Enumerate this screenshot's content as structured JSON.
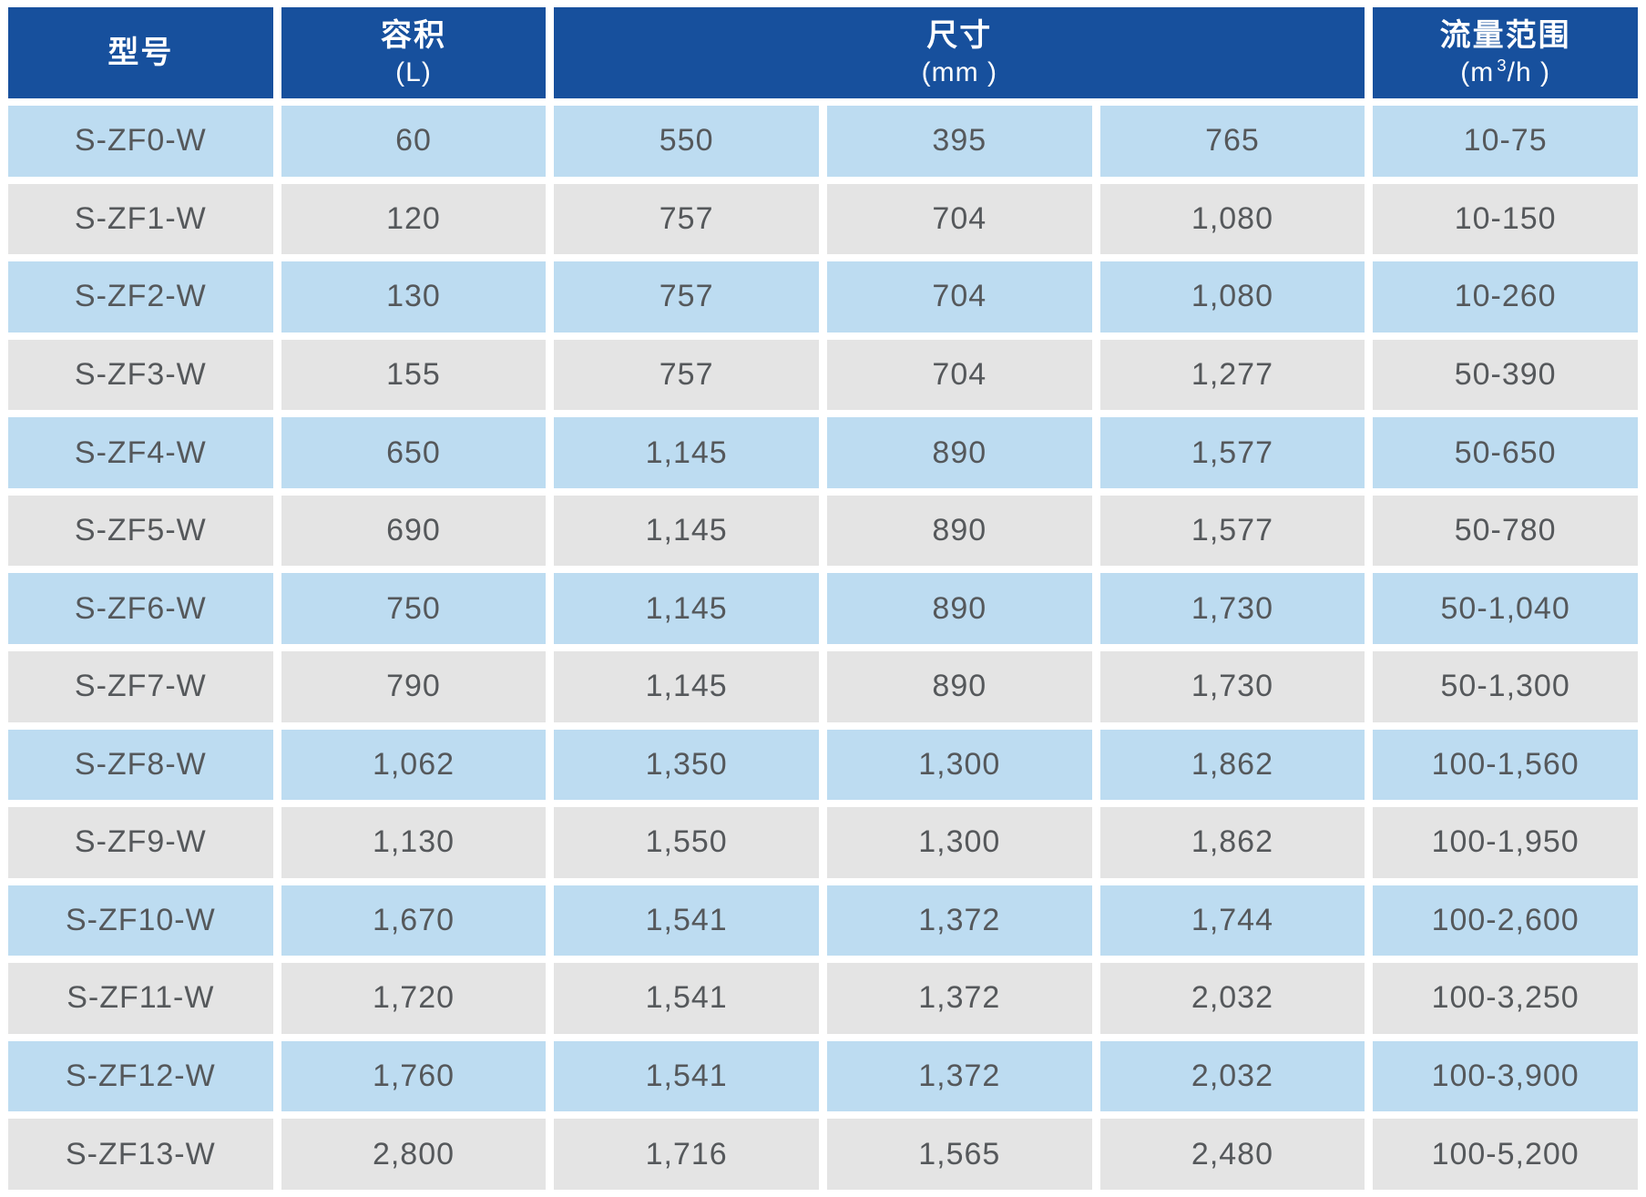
{
  "colors": {
    "header_bg": "#17509d",
    "header_text": "#ffffff",
    "row_blue": "#bddcf1",
    "row_gray": "#e4e4e4",
    "cell_text": "#55585b"
  },
  "table": {
    "header": {
      "model": {
        "title": "型号",
        "unit": ""
      },
      "volume": {
        "title": "容积",
        "unit": "(L)"
      },
      "size": {
        "title": "尺寸",
        "unit": "(mm )"
      },
      "flow": {
        "title": "流量范围",
        "unit_prefix": "(m",
        "unit_sup": "3",
        "unit_suffix": "/h )"
      }
    },
    "rows": [
      {
        "model": "S-ZF0-W",
        "volume": "60",
        "dim1": "550",
        "dim2": "395",
        "dim3": "765",
        "flow": "10-75"
      },
      {
        "model": "S-ZF1-W",
        "volume": "120",
        "dim1": "757",
        "dim2": "704",
        "dim3": "1,080",
        "flow": "10-150"
      },
      {
        "model": "S-ZF2-W",
        "volume": "130",
        "dim1": "757",
        "dim2": "704",
        "dim3": "1,080",
        "flow": "10-260"
      },
      {
        "model": "S-ZF3-W",
        "volume": "155",
        "dim1": "757",
        "dim2": "704",
        "dim3": "1,277",
        "flow": "50-390"
      },
      {
        "model": "S-ZF4-W",
        "volume": "650",
        "dim1": "1,145",
        "dim2": "890",
        "dim3": "1,577",
        "flow": "50-650"
      },
      {
        "model": "S-ZF5-W",
        "volume": "690",
        "dim1": "1,145",
        "dim2": "890",
        "dim3": "1,577",
        "flow": "50-780"
      },
      {
        "model": "S-ZF6-W",
        "volume": "750",
        "dim1": "1,145",
        "dim2": "890",
        "dim3": "1,730",
        "flow": "50-1,040"
      },
      {
        "model": "S-ZF7-W",
        "volume": "790",
        "dim1": "1,145",
        "dim2": "890",
        "dim3": "1,730",
        "flow": "50-1,300"
      },
      {
        "model": "S-ZF8-W",
        "volume": "1,062",
        "dim1": "1,350",
        "dim2": "1,300",
        "dim3": "1,862",
        "flow": "100-1,560"
      },
      {
        "model": "S-ZF9-W",
        "volume": "1,130",
        "dim1": "1,550",
        "dim2": "1,300",
        "dim3": "1,862",
        "flow": "100-1,950"
      },
      {
        "model": "S-ZF10-W",
        "volume": "1,670",
        "dim1": "1,541",
        "dim2": "1,372",
        "dim3": "1,744",
        "flow": "100-2,600"
      },
      {
        "model": "S-ZF11-W",
        "volume": "1,720",
        "dim1": "1,541",
        "dim2": "1,372",
        "dim3": "2,032",
        "flow": "100-3,250"
      },
      {
        "model": "S-ZF12-W",
        "volume": "1,760",
        "dim1": "1,541",
        "dim2": "1,372",
        "dim3": "2,032",
        "flow": "100-3,900"
      },
      {
        "model": "S-ZF13-W",
        "volume": "2,800",
        "dim1": "1,716",
        "dim2": "1,565",
        "dim3": "2,480",
        "flow": "100-5,200"
      }
    ]
  }
}
